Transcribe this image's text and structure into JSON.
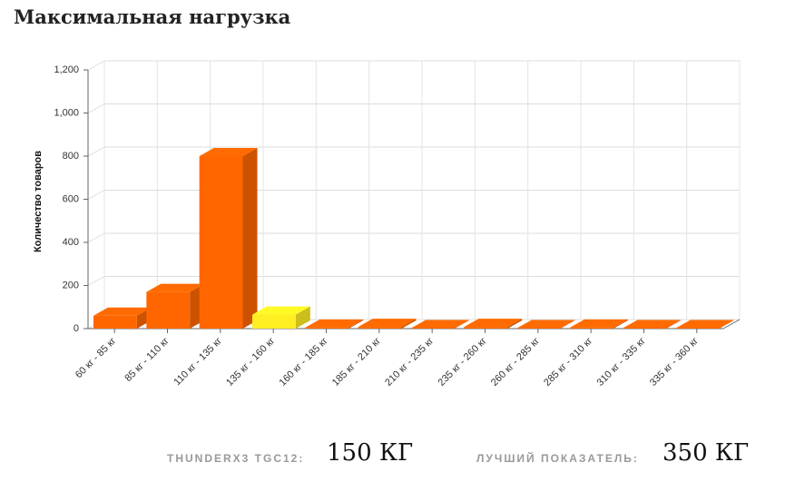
{
  "chart_data": {
    "type": "bar3d",
    "title": "Максимальная нагрузка",
    "y_label": "Количество товаров",
    "categories": [
      "60 кг - 85 кг",
      "85 кг - 110 кг",
      "110 кг - 135 кг",
      "135 кг - 160 кг",
      "160 кг - 185 кг",
      "185 кг - 210 кг",
      "210 кг - 235 кг",
      "235 кг - 260 кг",
      "260 кг - 285 кг",
      "285 кг - 310 кг",
      "310 кг - 335 кг",
      "335 кг - 360 кг"
    ],
    "values": [
      60,
      170,
      800,
      65,
      5,
      8,
      2,
      8,
      2,
      5,
      2,
      2
    ],
    "colors": [
      "#ff6600",
      "#ff6600",
      "#ff6600",
      "#ffee22",
      "#ff6600",
      "#ff6600",
      "#ff6600",
      "#ff6600",
      "#ff6600",
      "#ff6600",
      "#ff6600",
      "#ff6600"
    ],
    "ylim": [
      0,
      1200
    ],
    "yticks": [
      0,
      200,
      400,
      600,
      800,
      {
        "value": 1000,
        "label": "1,000"
      },
      {
        "value": 1200,
        "label": "1,200"
      }
    ],
    "grid": true
  },
  "footer": {
    "product_label": "THUNDERX3 TGC12:",
    "product_value": "150 КГ",
    "best_label": "ЛУЧШИЙ ПОКАЗАТЕЛЬ:",
    "best_value": "350 КГ"
  }
}
